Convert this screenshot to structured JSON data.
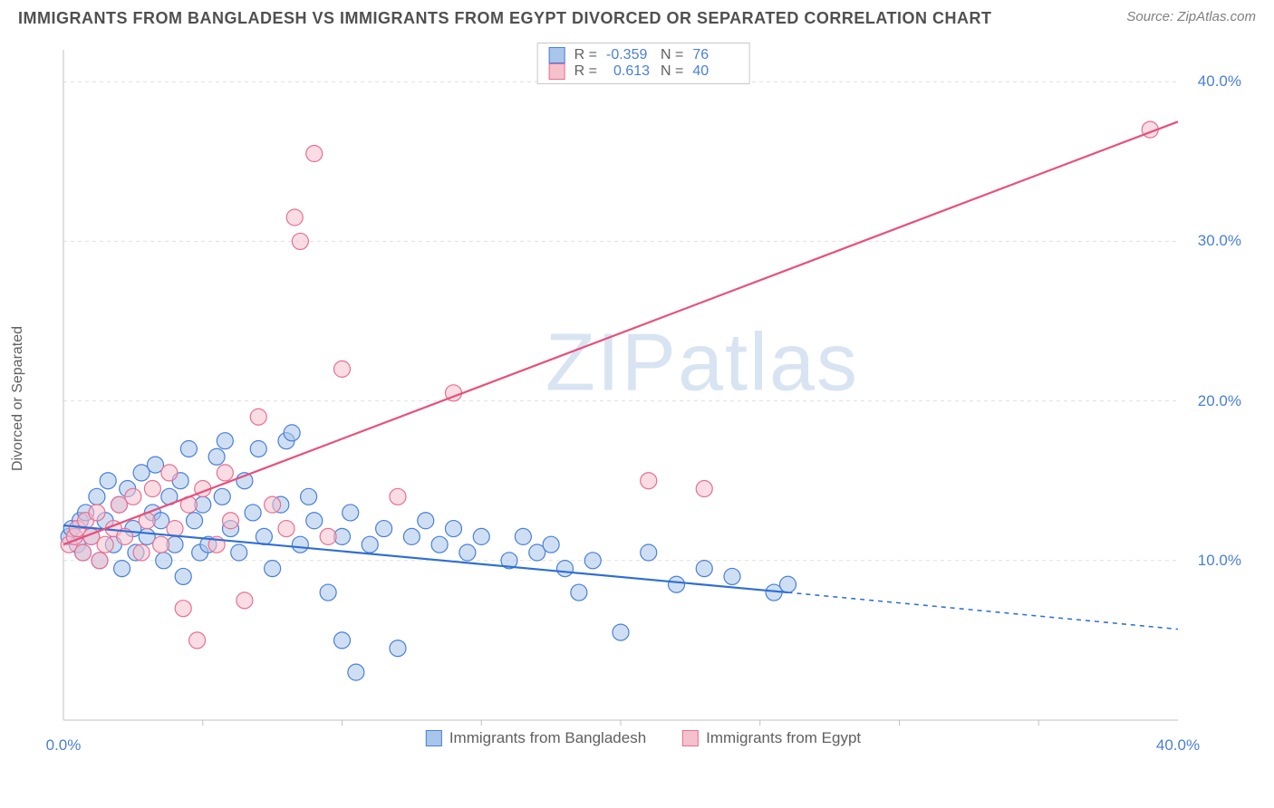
{
  "header": {
    "title": "IMMIGRANTS FROM BANGLADESH VS IMMIGRANTS FROM EGYPT DIVORCED OR SEPARATED CORRELATION CHART",
    "source_prefix": "Source: ",
    "source": "ZipAtlas.com"
  },
  "chart": {
    "type": "scatter",
    "ylabel": "Divorced or Separated",
    "background_color": "#ffffff",
    "grid_color": "#e0e0e0",
    "axis_color": "#c0c0c0",
    "label_color": "#4a7fd8",
    "xlim": [
      0,
      40
    ],
    "ylim": [
      0,
      42
    ],
    "xtick": {
      "pos": 0,
      "label": "0.0%"
    },
    "xtick_end": {
      "pos": 40,
      "label": "40.0%"
    },
    "yticks": [
      {
        "pos": 10,
        "label": "10.0%"
      },
      {
        "pos": 20,
        "label": "20.0%"
      },
      {
        "pos": 30,
        "label": "30.0%"
      },
      {
        "pos": 40,
        "label": "40.0%"
      }
    ],
    "x_minor_ticks": [
      5,
      10,
      15,
      20,
      25,
      30,
      35
    ],
    "watermark": "ZIPatlas",
    "marker_radius": 9,
    "marker_stroke_width": 1.2,
    "line_width": 2.2,
    "series": [
      {
        "name": "Immigrants from Bangladesh",
        "fill": "#a8c5ea",
        "stroke": "#4a7fd8",
        "line_color": "#2e6fd6",
        "R": "-0.359",
        "N": "76",
        "points": [
          [
            0.2,
            11.5
          ],
          [
            0.3,
            12.0
          ],
          [
            0.5,
            11.0
          ],
          [
            0.6,
            12.5
          ],
          [
            0.7,
            10.5
          ],
          [
            0.8,
            13.0
          ],
          [
            1.0,
            11.5
          ],
          [
            1.2,
            14.0
          ],
          [
            1.3,
            10.0
          ],
          [
            1.5,
            12.5
          ],
          [
            1.6,
            15.0
          ],
          [
            1.8,
            11.0
          ],
          [
            2.0,
            13.5
          ],
          [
            2.1,
            9.5
          ],
          [
            2.3,
            14.5
          ],
          [
            2.5,
            12.0
          ],
          [
            2.6,
            10.5
          ],
          [
            2.8,
            15.5
          ],
          [
            3.0,
            11.5
          ],
          [
            3.2,
            13.0
          ],
          [
            3.3,
            16.0
          ],
          [
            3.5,
            12.5
          ],
          [
            3.6,
            10.0
          ],
          [
            3.8,
            14.0
          ],
          [
            4.0,
            11.0
          ],
          [
            4.2,
            15.0
          ],
          [
            4.3,
            9.0
          ],
          [
            4.5,
            17.0
          ],
          [
            4.7,
            12.5
          ],
          [
            4.9,
            10.5
          ],
          [
            5.0,
            13.5
          ],
          [
            5.2,
            11.0
          ],
          [
            5.5,
            16.5
          ],
          [
            5.7,
            14.0
          ],
          [
            5.8,
            17.5
          ],
          [
            6.0,
            12.0
          ],
          [
            6.3,
            10.5
          ],
          [
            6.5,
            15.0
          ],
          [
            6.8,
            13.0
          ],
          [
            7.0,
            17.0
          ],
          [
            7.2,
            11.5
          ],
          [
            7.5,
            9.5
          ],
          [
            7.8,
            13.5
          ],
          [
            8.0,
            17.5
          ],
          [
            8.2,
            18.0
          ],
          [
            8.5,
            11.0
          ],
          [
            8.8,
            14.0
          ],
          [
            9.0,
            12.5
          ],
          [
            9.5,
            8.0
          ],
          [
            10.0,
            11.5
          ],
          [
            10.0,
            5.0
          ],
          [
            10.3,
            13.0
          ],
          [
            10.5,
            3.0
          ],
          [
            11.0,
            11.0
          ],
          [
            11.5,
            12.0
          ],
          [
            12.0,
            4.5
          ],
          [
            12.5,
            11.5
          ],
          [
            13.0,
            12.5
          ],
          [
            13.5,
            11.0
          ],
          [
            14.0,
            12.0
          ],
          [
            14.5,
            10.5
          ],
          [
            15.0,
            11.5
          ],
          [
            16.0,
            10.0
          ],
          [
            16.5,
            11.5
          ],
          [
            17.0,
            10.5
          ],
          [
            17.5,
            11.0
          ],
          [
            18.0,
            9.5
          ],
          [
            18.5,
            8.0
          ],
          [
            19.0,
            10.0
          ],
          [
            20.0,
            5.5
          ],
          [
            21.0,
            10.5
          ],
          [
            22.0,
            8.5
          ],
          [
            23.0,
            9.5
          ],
          [
            24.0,
            9.0
          ],
          [
            25.5,
            8.0
          ],
          [
            26.0,
            8.5
          ]
        ],
        "regression": {
          "x1": 0,
          "y1": 12.2,
          "x2": 26,
          "y2": 8.0,
          "x_extend": 40,
          "y_extend": 5.7
        }
      },
      {
        "name": "Immigrants from Egypt",
        "fill": "#f5c1cd",
        "stroke": "#e86f92",
        "line_color": "#e84f7a",
        "R": "0.613",
        "N": "40",
        "points": [
          [
            0.2,
            11.0
          ],
          [
            0.4,
            11.5
          ],
          [
            0.5,
            12.0
          ],
          [
            0.7,
            10.5
          ],
          [
            0.8,
            12.5
          ],
          [
            1.0,
            11.5
          ],
          [
            1.2,
            13.0
          ],
          [
            1.3,
            10.0
          ],
          [
            1.5,
            11.0
          ],
          [
            1.8,
            12.0
          ],
          [
            2.0,
            13.5
          ],
          [
            2.2,
            11.5
          ],
          [
            2.5,
            14.0
          ],
          [
            2.8,
            10.5
          ],
          [
            3.0,
            12.5
          ],
          [
            3.2,
            14.5
          ],
          [
            3.5,
            11.0
          ],
          [
            3.8,
            15.5
          ],
          [
            4.0,
            12.0
          ],
          [
            4.3,
            7.0
          ],
          [
            4.5,
            13.5
          ],
          [
            4.8,
            5.0
          ],
          [
            5.0,
            14.5
          ],
          [
            5.5,
            11.0
          ],
          [
            5.8,
            15.5
          ],
          [
            6.0,
            12.5
          ],
          [
            6.5,
            7.5
          ],
          [
            7.0,
            19.0
          ],
          [
            7.5,
            13.5
          ],
          [
            8.0,
            12.0
          ],
          [
            8.3,
            31.5
          ],
          [
            8.5,
            30.0
          ],
          [
            9.0,
            35.5
          ],
          [
            9.5,
            11.5
          ],
          [
            10.0,
            22.0
          ],
          [
            12.0,
            14.0
          ],
          [
            14.0,
            20.5
          ],
          [
            21.0,
            15.0
          ],
          [
            23.0,
            14.5
          ],
          [
            39.0,
            37.0
          ]
        ],
        "regression": {
          "x1": 0,
          "y1": 11.0,
          "x2": 40,
          "y2": 37.5,
          "x_extend": 40,
          "y_extend": 37.5
        }
      }
    ],
    "legend_bottom": [
      {
        "label": "Immigrants from Bangladesh",
        "fill": "#a8c5ea",
        "stroke": "#4a7fd8"
      },
      {
        "label": "Immigrants from Egypt",
        "fill": "#f5c1cd",
        "stroke": "#e86f92"
      }
    ]
  }
}
